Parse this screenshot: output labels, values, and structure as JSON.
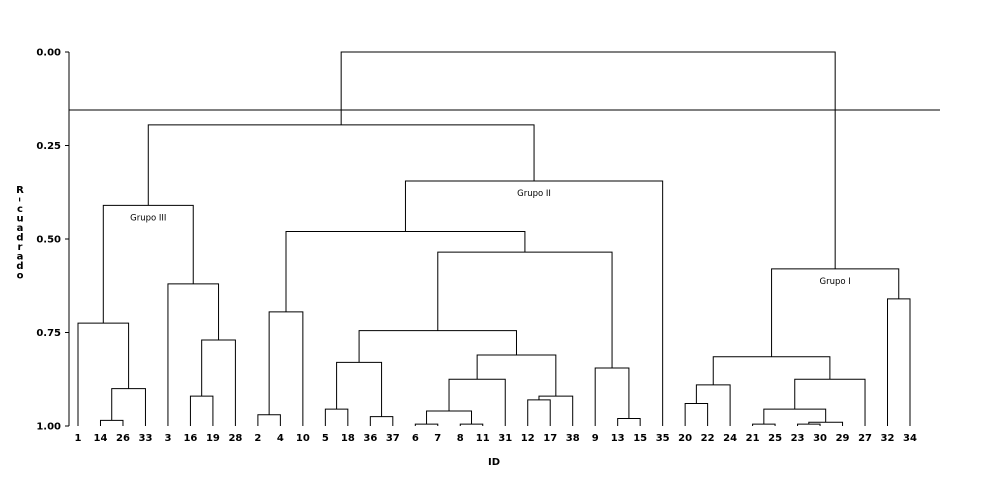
{
  "chart_data": {
    "type": "dendrogram",
    "xlabel": "ID",
    "ylabel": "R-cuadrado",
    "ylim": [
      0,
      1
    ],
    "y_axis_inverted": true,
    "y_ticks": [
      "0.00",
      "0.25",
      "0.50",
      "0.75",
      "1.00"
    ],
    "cut_line_y": 0.155,
    "leaves": [
      "1",
      "14",
      "26",
      "33",
      "3",
      "16",
      "19",
      "28",
      "2",
      "4",
      "10",
      "5",
      "18",
      "36",
      "37",
      "6",
      "7",
      "8",
      "11",
      "31",
      "12",
      "17",
      "38",
      "9",
      "13",
      "15",
      "35",
      "20",
      "22",
      "24",
      "21",
      "25",
      "23",
      "30",
      "29",
      "27",
      "32",
      "34"
    ],
    "merges": [
      {
        "id": "m1",
        "a": "L6",
        "b": "L7",
        "y": 0.995
      },
      {
        "id": "m2",
        "a": "L8",
        "b": "L11",
        "y": 0.995
      },
      {
        "id": "m3",
        "a": "L21",
        "b": "L25",
        "y": 0.995
      },
      {
        "id": "m4",
        "a": "L23",
        "b": "L30",
        "y": 0.995
      },
      {
        "id": "m5",
        "a": "m4",
        "b": "L29",
        "y": 0.99
      },
      {
        "id": "m6",
        "a": "L14",
        "b": "L26",
        "y": 0.985
      },
      {
        "id": "m7",
        "a": "L13",
        "b": "L15",
        "y": 0.98
      },
      {
        "id": "m8",
        "a": "L36",
        "b": "L37",
        "y": 0.975
      },
      {
        "id": "m9",
        "a": "L2",
        "b": "L4",
        "y": 0.97
      },
      {
        "id": "m10",
        "a": "m1",
        "b": "m2",
        "y": 0.96
      },
      {
        "id": "m11",
        "a": "m3",
        "b": "m5",
        "y": 0.955
      },
      {
        "id": "m12",
        "a": "L5",
        "b": "L18",
        "y": 0.955
      },
      {
        "id": "m13",
        "a": "L20",
        "b": "L22",
        "y": 0.94
      },
      {
        "id": "m14",
        "a": "L12",
        "b": "L17",
        "y": 0.93
      },
      {
        "id": "m15",
        "a": "m14",
        "b": "L38",
        "y": 0.92
      },
      {
        "id": "m16",
        "a": "L16",
        "b": "L19",
        "y": 0.92
      },
      {
        "id": "m17",
        "a": "m6",
        "b": "L33",
        "y": 0.9
      },
      {
        "id": "m18",
        "a": "m13",
        "b": "L24",
        "y": 0.89
      },
      {
        "id": "m19",
        "a": "m11",
        "b": "L27",
        "y": 0.875
      },
      {
        "id": "m20",
        "a": "m10",
        "b": "L31",
        "y": 0.875
      },
      {
        "id": "m21",
        "a": "L9",
        "b": "m7",
        "y": 0.845
      },
      {
        "id": "m22",
        "a": "m12",
        "b": "m8",
        "y": 0.83
      },
      {
        "id": "m23",
        "a": "m20",
        "b": "m15",
        "y": 0.81
      },
      {
        "id": "m24",
        "a": "m18",
        "b": "m19",
        "y": 0.815
      },
      {
        "id": "m25",
        "a": "m16",
        "b": "L28",
        "y": 0.77
      },
      {
        "id": "m26",
        "a": "m22",
        "b": "m23",
        "y": 0.745
      },
      {
        "id": "m27",
        "a": "L1",
        "b": "m17",
        "y": 0.725
      },
      {
        "id": "m28",
        "a": "m9",
        "b": "L10",
        "y": 0.695
      },
      {
        "id": "m29",
        "a": "L32",
        "b": "L34",
        "y": 0.66
      },
      {
        "id": "m30",
        "a": "L3",
        "b": "m25",
        "y": 0.62
      },
      {
        "id": "m31",
        "a": "m24",
        "b": "m29",
        "y": 0.58
      },
      {
        "id": "m32",
        "a": "m26",
        "b": "m21",
        "y": 0.535
      },
      {
        "id": "m33",
        "a": "m28",
        "b": "m32",
        "y": 0.48
      },
      {
        "id": "m34",
        "a": "m27",
        "b": "m30",
        "y": 0.41
      },
      {
        "id": "m35",
        "a": "m33",
        "b": "L35",
        "y": 0.345
      },
      {
        "id": "m36",
        "a": "m34",
        "b": "m35",
        "y": 0.195
      },
      {
        "id": "m37",
        "a": "m36",
        "b": "m31",
        "y": 0.0
      }
    ],
    "group_labels": [
      {
        "text": "Grupo III",
        "node": "m34"
      },
      {
        "text": "Grupo II",
        "node": "m35"
      },
      {
        "text": "Grupo I",
        "node": "m31"
      }
    ]
  }
}
